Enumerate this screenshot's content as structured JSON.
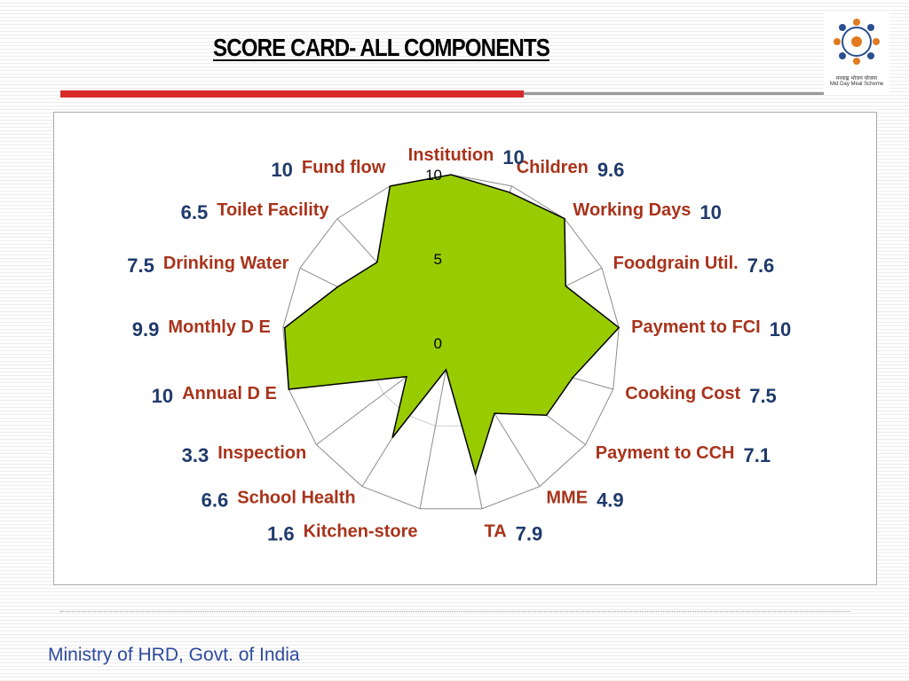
{
  "slide": {
    "title": "SCORE CARD- ALL COMPONENTS",
    "footer": "Ministry of HRD, Govt. of India",
    "logo_text_hindi": "मध्याह्न भोजन योजना",
    "logo_text_english": "Mid Day Meal Scheme"
  },
  "colors": {
    "fill": "#99cc00",
    "category_text": "#a8331b",
    "value_text": "#1f3a6b",
    "accent_bar": "#d72b2b"
  },
  "icons": [
    "mdm-logo-icon"
  ],
  "chart_data": {
    "type": "radar",
    "title": "",
    "categories": [
      "Institution",
      "Children",
      "Working Days",
      "Foodgrain Util.",
      "Payment to FCI",
      "Cooking Cost",
      "Payment to CCH",
      "MME",
      "TA",
      "Kitchen-store",
      "School Health",
      "Inspection",
      "Annual D E",
      "Monthly D E",
      "Drinking Water",
      "Toilet Facility",
      "Fund flow"
    ],
    "values": [
      10,
      9.6,
      10,
      7.6,
      10,
      7.5,
      7.1,
      4.9,
      7.9,
      1.6,
      6.6,
      3.3,
      10,
      9.9,
      7.5,
      6.5,
      10
    ],
    "value_labels": [
      "10",
      "9.6",
      "10",
      "7.6",
      "10",
      "7.5",
      "7.1",
      "4.9",
      "7.9",
      "1.6",
      "6.6",
      "3.3",
      "10",
      "9.9",
      "7.5",
      "6.5",
      "10"
    ],
    "rlim": [
      0,
      10
    ],
    "ticks": [
      0,
      5,
      10
    ],
    "tick_labels": [
      "0",
      "5",
      "10"
    ],
    "grid": true,
    "legend": "none"
  }
}
